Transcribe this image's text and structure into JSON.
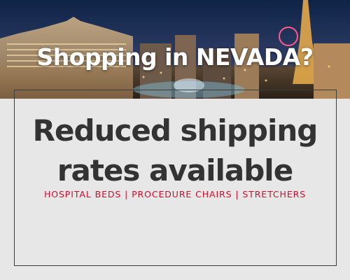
{
  "hero": {
    "image": "las-vegas-strip-skyline-at-dusk",
    "title": "Shopping in NEVADA?"
  },
  "headline": {
    "line1": "Reduced shipping",
    "line2": "rates available"
  },
  "categories": "HOSPITAL BEDS | PROCEDURE CHAIRS | STRETCHERS",
  "colors": {
    "background": "#e7e7e7",
    "headline": "#333333",
    "accent": "#c8102e",
    "frame": "#3b3b3b"
  }
}
